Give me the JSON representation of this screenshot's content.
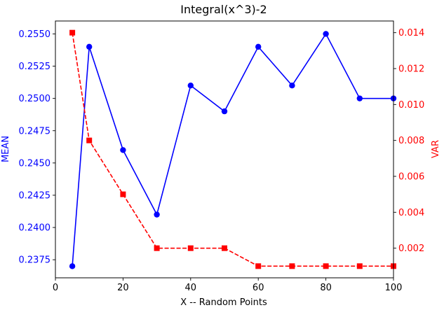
{
  "chart_data": {
    "type": "line",
    "title": "Integral(x^3)-2",
    "xlabel": "X -- Random Points",
    "xlim": [
      0,
      100
    ],
    "x_ticks": [
      0,
      20,
      40,
      60,
      80,
      100
    ],
    "x": [
      5,
      10,
      20,
      30,
      40,
      50,
      60,
      70,
      80,
      90,
      100
    ],
    "grid": false,
    "legend": "none",
    "axes": {
      "left": {
        "label": "MEAN",
        "color": "#0000ff",
        "ylim": [
          0.2361,
          0.256
        ],
        "ticks": [
          0.2375,
          0.24,
          0.2425,
          0.245,
          0.2475,
          0.25,
          0.2525,
          0.255
        ],
        "tick_labels": [
          "0.2375",
          "0.2400",
          "0.2425",
          "0.2450",
          "0.2475",
          "0.2500",
          "0.2525",
          "0.2550"
        ]
      },
      "right": {
        "label": "VAR",
        "color": "#ff0000",
        "ylim": [
          0.00035,
          0.01465
        ],
        "ticks": [
          0.002,
          0.004,
          0.006,
          0.008,
          0.01,
          0.012,
          0.014
        ],
        "tick_labels": [
          "0.002",
          "0.004",
          "0.006",
          "0.008",
          "0.010",
          "0.012",
          "0.014"
        ]
      }
    },
    "series": [
      {
        "axis": "left",
        "color": "#0000ff",
        "line_style": "solid",
        "marker": "circle",
        "values": [
          0.237,
          0.254,
          0.246,
          0.241,
          0.251,
          0.249,
          0.254,
          0.251,
          0.255,
          0.25,
          0.25
        ]
      },
      {
        "axis": "right",
        "color": "#ff0000",
        "line_style": "dashed",
        "marker": "square",
        "values": [
          0.014,
          0.008,
          0.005,
          0.002,
          0.002,
          0.002,
          0.001,
          0.001,
          0.001,
          0.001,
          0.001
        ]
      }
    ]
  }
}
